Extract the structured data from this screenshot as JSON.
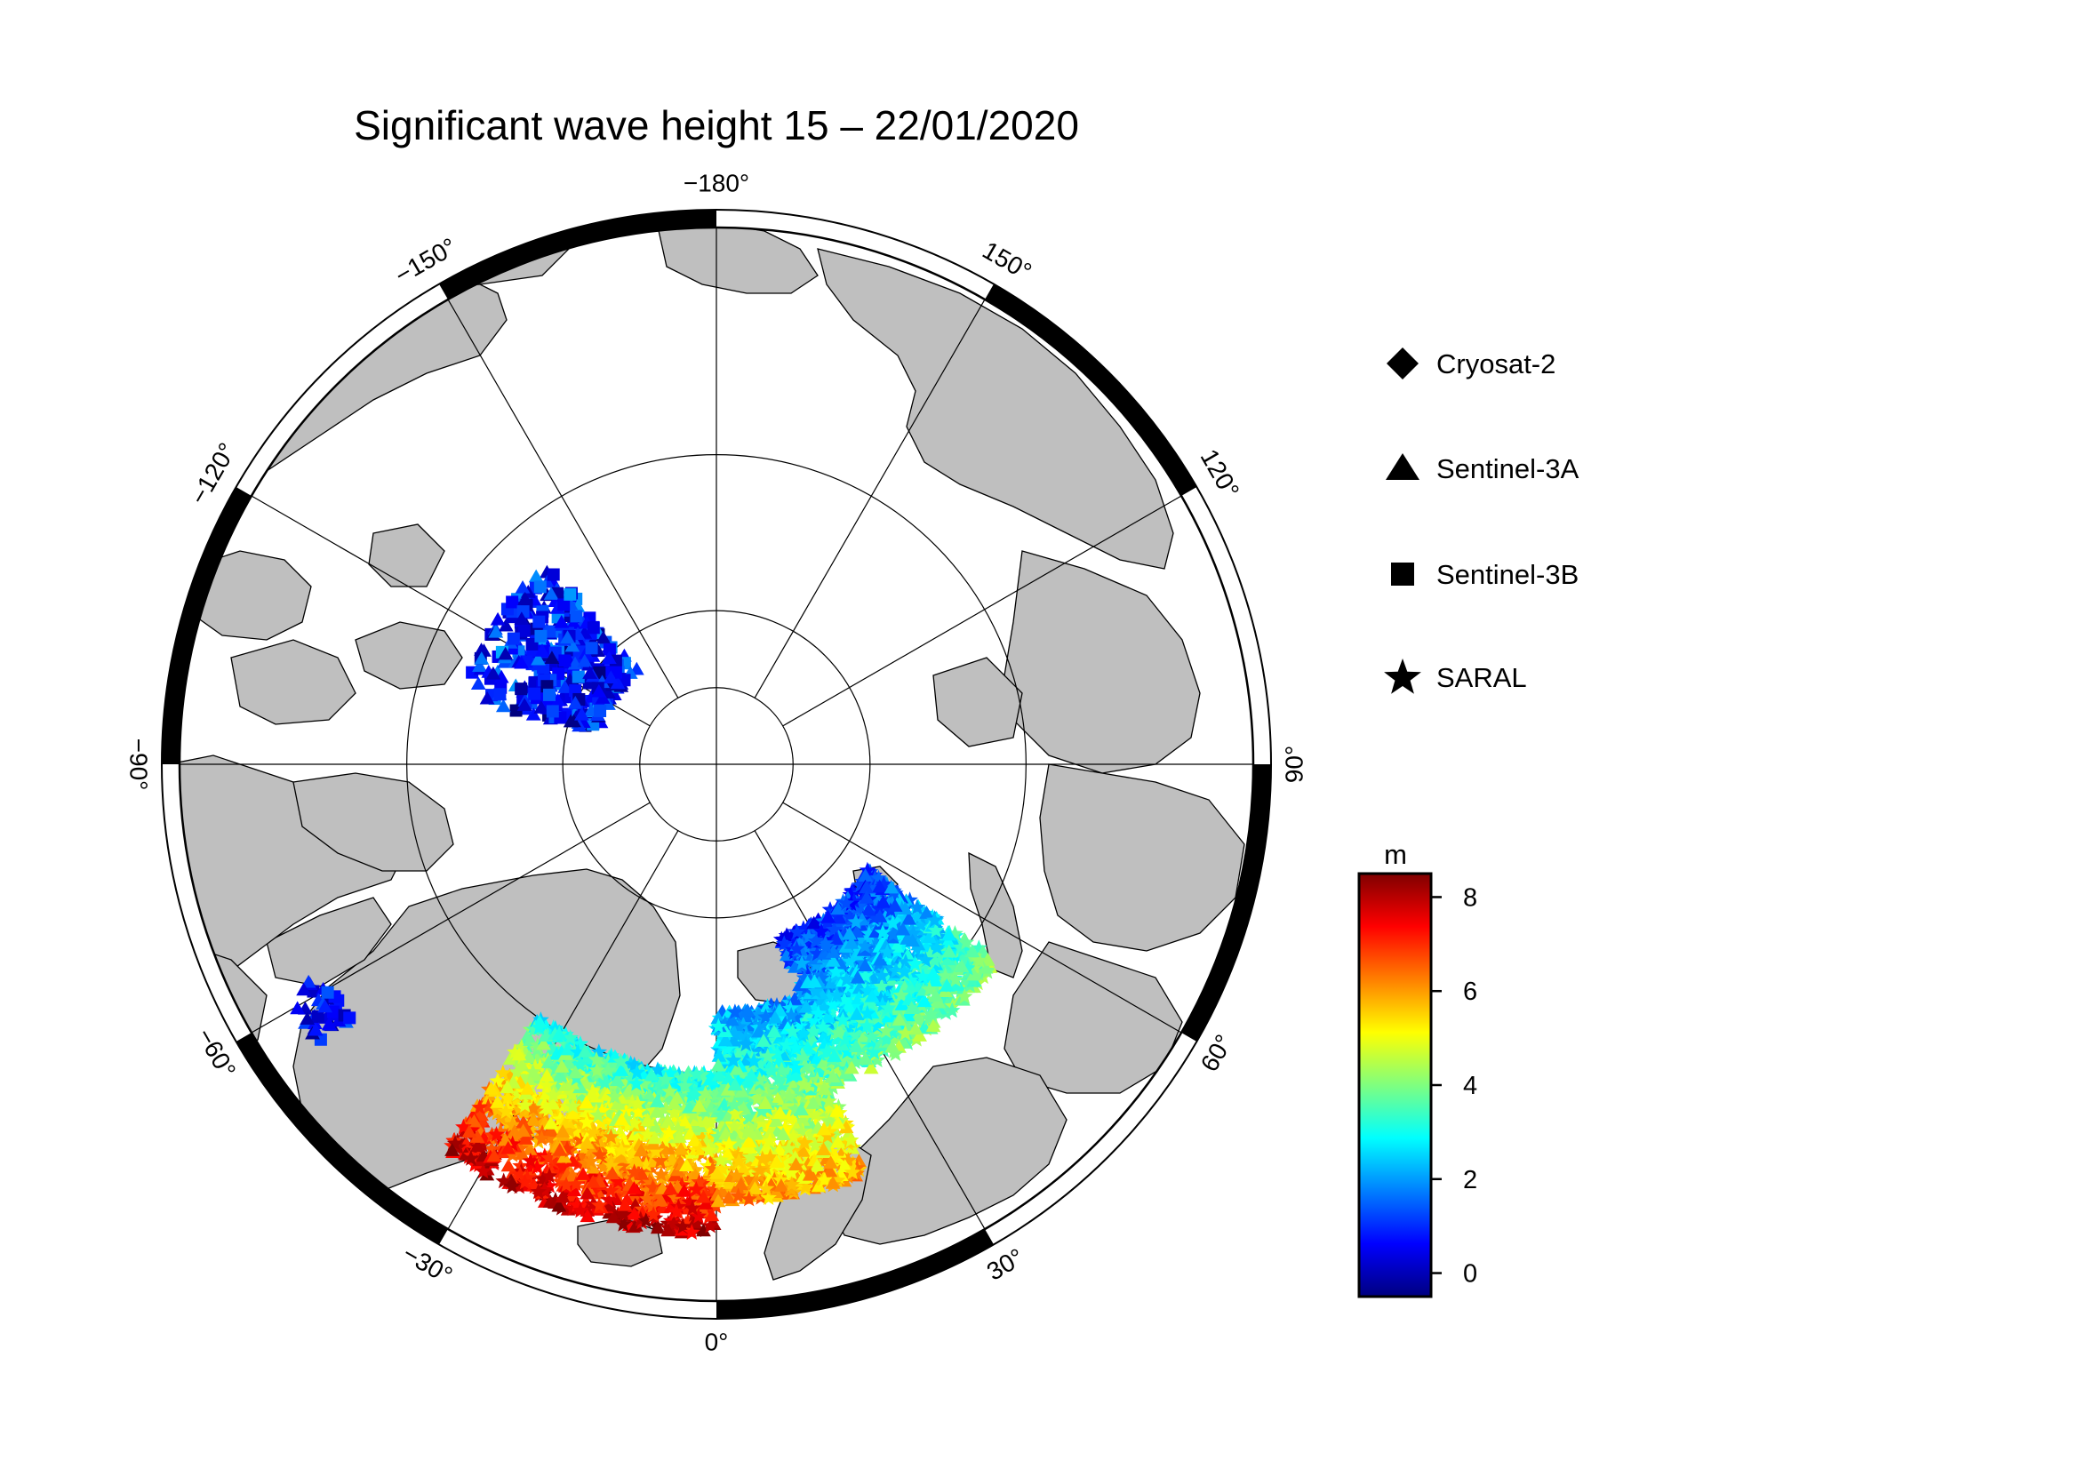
{
  "title": "Significant wave height 15 – 22/01/2020",
  "map": {
    "projection": "north-polar-stereographic",
    "latitude_circles": [
      70,
      80,
      85
    ],
    "meridians_every_deg": 30,
    "frame_segment_deg": 30,
    "land_color": "#bfbfbf",
    "ocean_color": "#ffffff",
    "longitude_labels": [
      {
        "lon": 180,
        "text": "−180°"
      },
      {
        "lon": 150,
        "text": "150°"
      },
      {
        "lon": 120,
        "text": "120°"
      },
      {
        "lon": 90,
        "text": "90°"
      },
      {
        "lon": 60,
        "text": "60°"
      },
      {
        "lon": 30,
        "text": "30°"
      },
      {
        "lon": 0,
        "text": "0°"
      },
      {
        "lon": -30,
        "text": "−30°"
      },
      {
        "lon": -60,
        "text": "−60°"
      },
      {
        "lon": -90,
        "text": "−90°"
      },
      {
        "lon": -120,
        "text": "−120°"
      },
      {
        "lon": -150,
        "text": "−150°"
      }
    ]
  },
  "legend": {
    "items": [
      {
        "symbol": "diamond",
        "label": "Cryosat-2"
      },
      {
        "symbol": "triangle",
        "label": "Sentinel-3A"
      },
      {
        "symbol": "square",
        "label": "Sentinel-3B"
      },
      {
        "symbol": "star",
        "label": "SARAL"
      }
    ]
  },
  "colorbar": {
    "unit": "m",
    "min": -0.5,
    "max": 8.5,
    "ticks": [
      0,
      2,
      4,
      6,
      8
    ],
    "colors": [
      "#00007f",
      "#0000ff",
      "#007fff",
      "#00ffff",
      "#7fff7f",
      "#ffff00",
      "#ff7f00",
      "#ff0000",
      "#7f0000"
    ]
  },
  "chart_data": {
    "type": "scatter",
    "title": "Significant wave height 15 – 22/01/2020",
    "value_unit": "m",
    "value_range": [
      -0.5,
      8.5
    ],
    "regions": [
      {
        "lon": [
          -140,
          -105
        ],
        "lat": [
          73,
          82
        ],
        "hs": [
          0,
          1.5
        ],
        "symbols": [
          "triangle",
          "square"
        ]
      },
      {
        "lon": [
          -62,
          -55
        ],
        "lat": [
          59,
          61.5
        ],
        "hs": [
          0,
          1
        ],
        "symbols": [
          "triangle",
          "square"
        ]
      },
      {
        "lon": [
          -35,
          0
        ],
        "lat": [
          60,
          70
        ],
        "hs": [
          3,
          8
        ],
        "symbols": [
          "triangle",
          "star"
        ]
      },
      {
        "lon": [
          0,
          20
        ],
        "lat": [
          62,
          74
        ],
        "hs": [
          2,
          6
        ],
        "symbols": [
          "triangle",
          "star"
        ]
      },
      {
        "lon": [
          20,
          55
        ],
        "lat": [
          68,
          78
        ],
        "hs": [
          1,
          4
        ],
        "symbols": [
          "triangle",
          "star"
        ]
      }
    ]
  }
}
